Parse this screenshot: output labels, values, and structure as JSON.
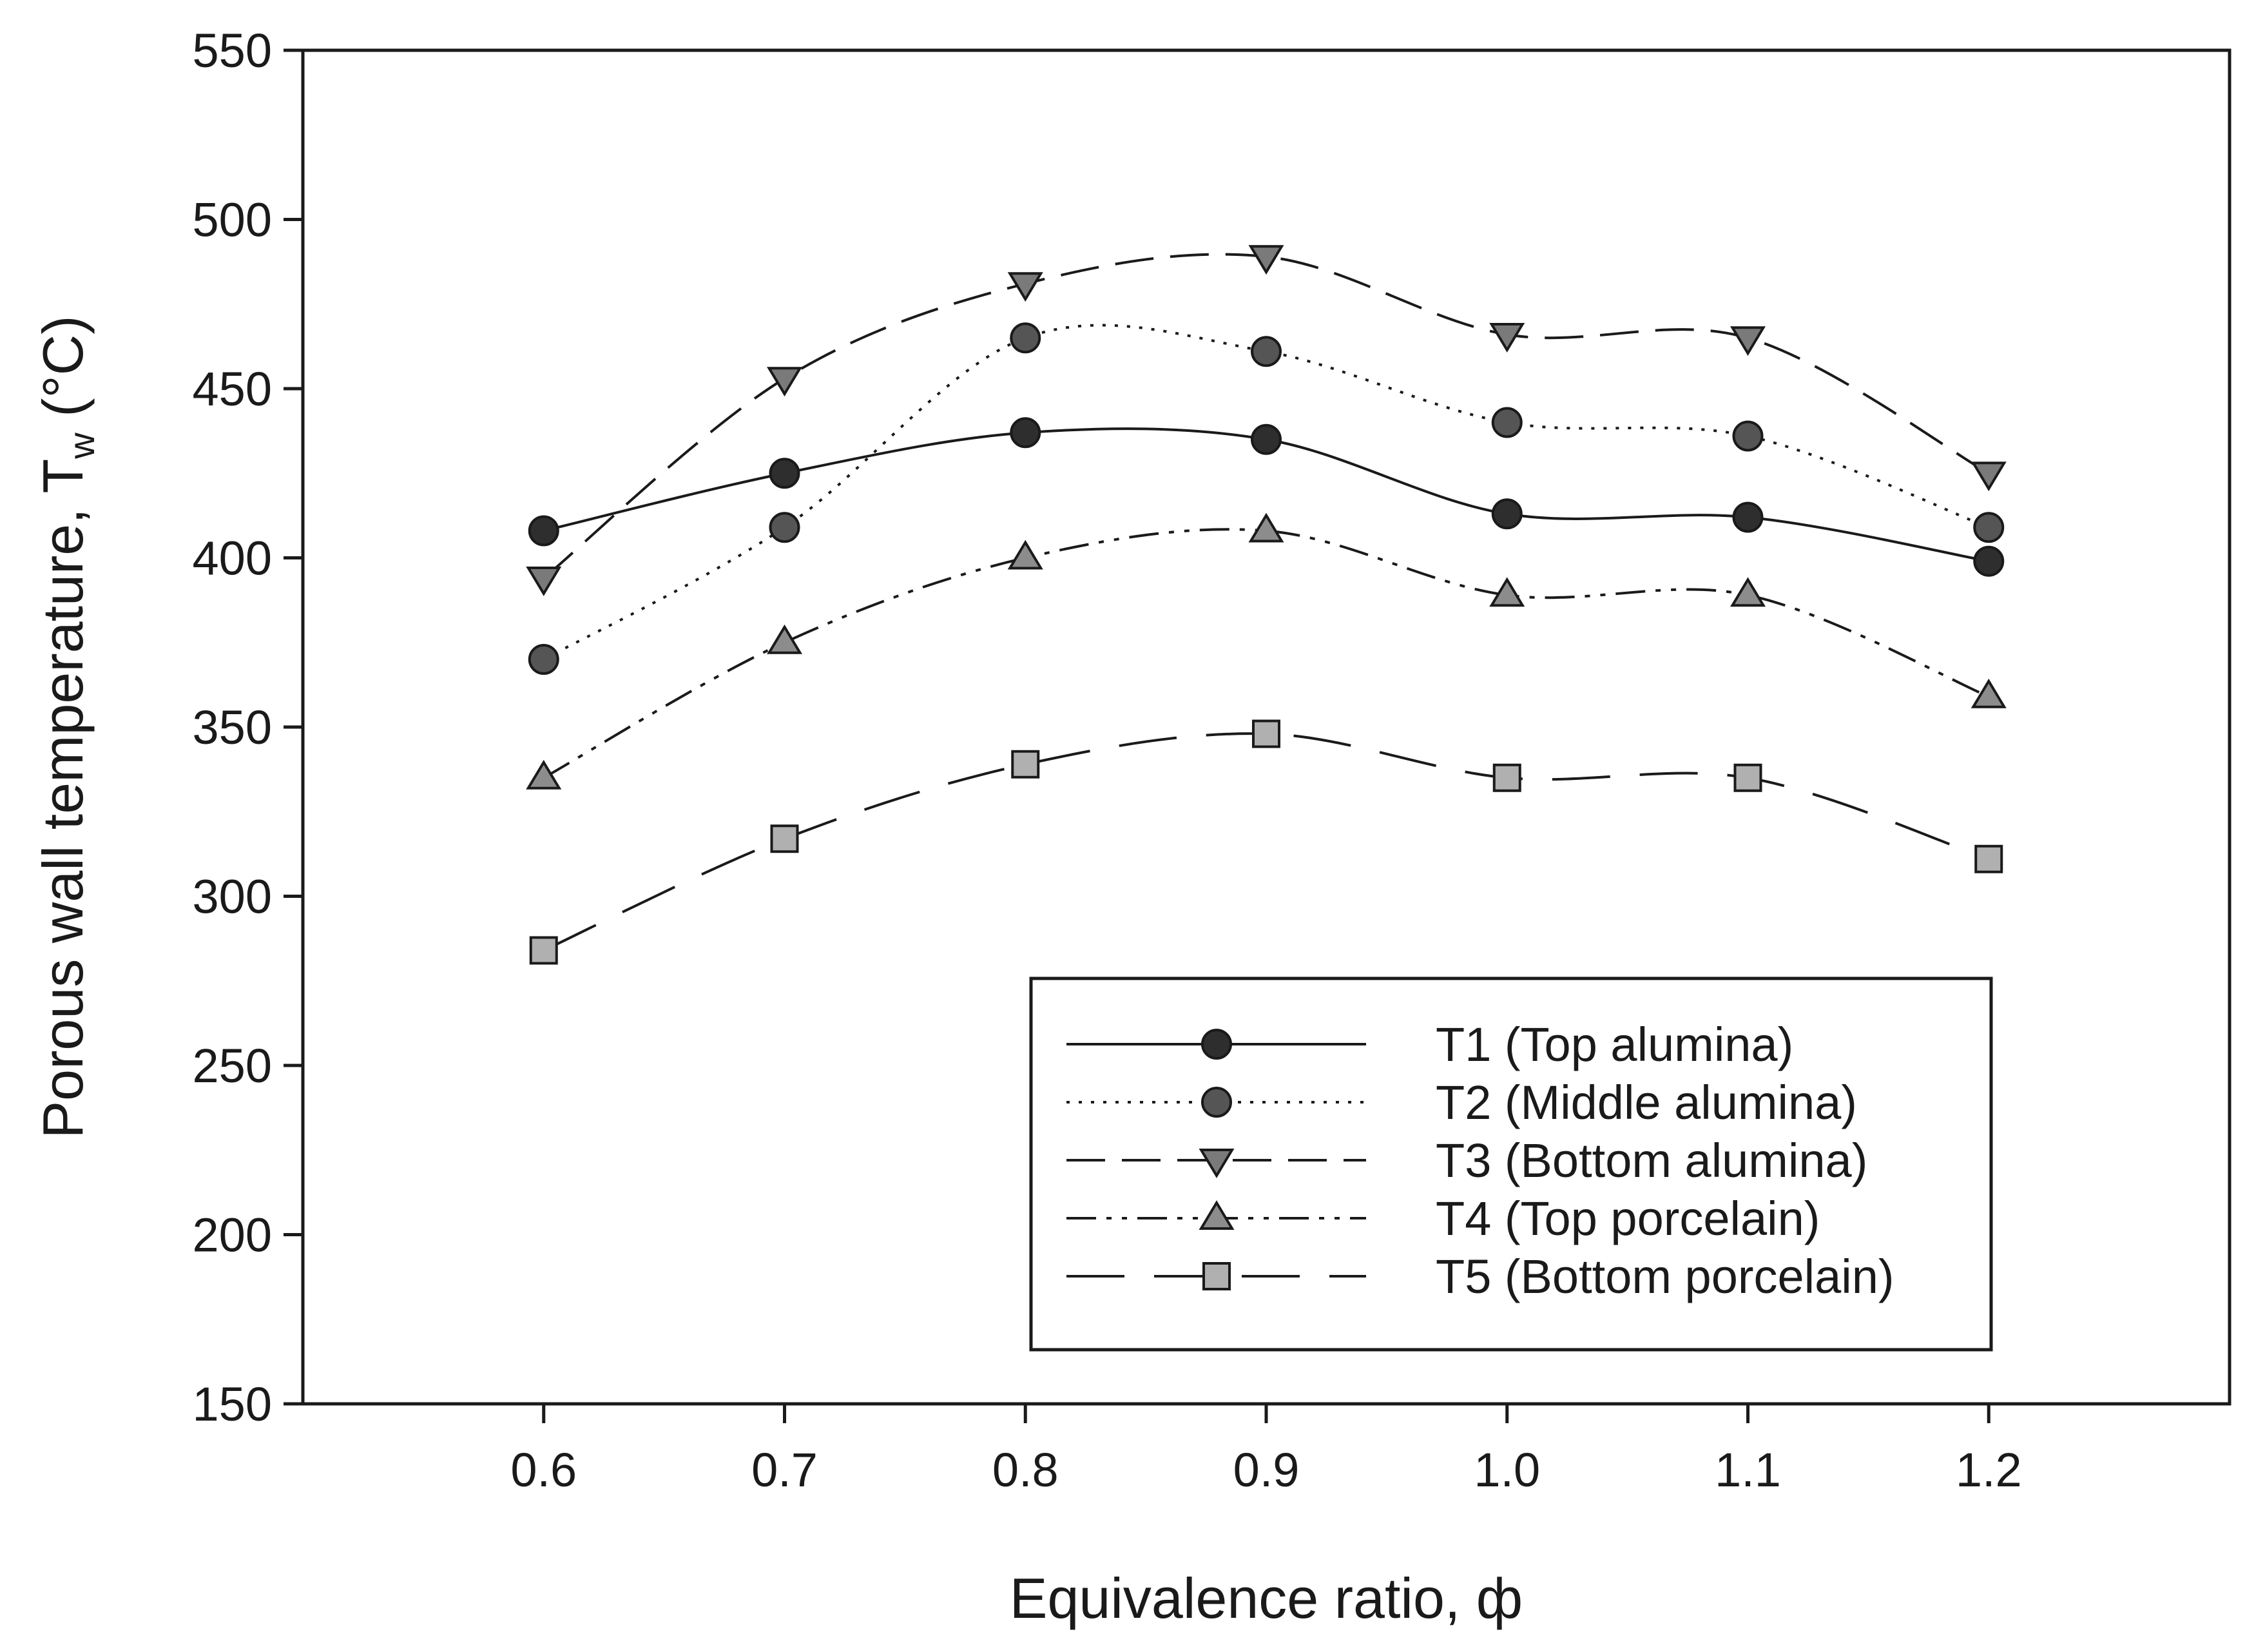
{
  "chart_data": {
    "type": "line",
    "title": "",
    "xlabel": "Equivalence ratio, ф",
    "ylabel": {
      "main": "Porous wall temperature, T",
      "subscript": "w",
      "unit": " (°C)"
    },
    "xlim": [
      0.5,
      1.3
    ],
    "ylim": [
      150,
      550
    ],
    "x_ticks": [
      {
        "value": 0.6,
        "label": "0.6"
      },
      {
        "value": 0.7,
        "label": "0.7"
      },
      {
        "value": 0.8,
        "label": "0.8"
      },
      {
        "value": 0.9,
        "label": "0.9"
      },
      {
        "value": 1.0,
        "label": "1.0"
      },
      {
        "value": 1.1,
        "label": "1.1"
      },
      {
        "value": 1.2,
        "label": "1.2"
      }
    ],
    "y_ticks": [
      {
        "value": 150,
        "label": "150"
      },
      {
        "value": 200,
        "label": "200"
      },
      {
        "value": 250,
        "label": "250"
      },
      {
        "value": 300,
        "label": "300"
      },
      {
        "value": 350,
        "label": "350"
      },
      {
        "value": 400,
        "label": "400"
      },
      {
        "value": 450,
        "label": "450"
      },
      {
        "value": 500,
        "label": "500"
      },
      {
        "value": 550,
        "label": "550"
      }
    ],
    "grid": false,
    "legend_position": "bottom-right",
    "x": [
      0.6,
      0.7,
      0.8,
      0.9,
      1.0,
      1.1,
      1.2
    ],
    "series": [
      {
        "name": "T1 (Top alumina)",
        "values": [
          408,
          425,
          437,
          435,
          413,
          412,
          399
        ],
        "marker": "circle",
        "fill": "#2e2e2e",
        "line": "solid"
      },
      {
        "name": "T2 (Middle alumina)",
        "values": [
          370,
          409,
          465,
          461,
          440,
          436,
          409
        ],
        "marker": "circle",
        "fill": "#555555",
        "line": "dotted"
      },
      {
        "name": "T3 (Bottom alumina)",
        "values": [
          394,
          453,
          481,
          489,
          466,
          465,
          425
        ],
        "marker": "triangle-down",
        "fill": "#7a7a7a",
        "line": "dashed"
      },
      {
        "name": "T4 (Top porcelain)",
        "values": [
          335,
          375,
          400,
          408,
          389,
          389,
          359
        ],
        "marker": "triangle-up",
        "fill": "#8c8c8c",
        "line": "dash-dot-dot"
      },
      {
        "name": "T5 (Bottom porcelain)",
        "values": [
          284,
          317,
          339,
          348,
          335,
          335,
          311
        ],
        "marker": "square",
        "fill": "#b0b0b0",
        "line": "long-dash"
      }
    ]
  }
}
